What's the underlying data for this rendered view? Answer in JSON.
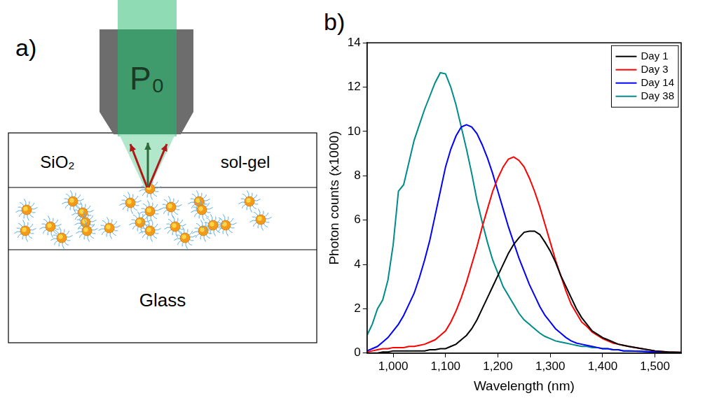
{
  "diagram": {
    "panel_label": "a)",
    "beam_label": "P₀",
    "layer_labels": [
      "SiO₂",
      "sol-gel"
    ],
    "substrate_label": "Glass"
  },
  "chart_data": {
    "panel_label": "b)",
    "type": "line",
    "x_label": "Wavelength (nm)",
    "y_label": "Photon counts (x1000)",
    "x": [
      950,
      960,
      970,
      980,
      990,
      1000,
      1010,
      1020,
      1030,
      1040,
      1050,
      1060,
      1070,
      1080,
      1090,
      1100,
      1110,
      1120,
      1130,
      1140,
      1150,
      1160,
      1170,
      1180,
      1190,
      1200,
      1210,
      1220,
      1230,
      1240,
      1250,
      1260,
      1270,
      1280,
      1290,
      1300,
      1310,
      1320,
      1330,
      1340,
      1350,
      1360,
      1370,
      1380,
      1390,
      1400,
      1410,
      1420,
      1430,
      1440,
      1450,
      1475,
      1500,
      1525,
      1550
    ],
    "series": [
      {
        "name": "Day 1",
        "color": "#000000",
        "values": [
          0,
          0,
          0,
          0.05,
          0.05,
          0.1,
          0.1,
          0.1,
          0.1,
          0.1,
          0.1,
          0.1,
          0.15,
          0.15,
          0.2,
          0.2,
          0.3,
          0.4,
          0.6,
          0.8,
          1.1,
          1.5,
          2.0,
          2.5,
          3.0,
          3.5,
          4.0,
          4.5,
          4.9,
          5.2,
          5.45,
          5.5,
          5.5,
          5.35,
          5.0,
          4.6,
          4.1,
          3.5,
          3.0,
          2.5,
          2.0,
          1.6,
          1.3,
          1.0,
          0.85,
          0.7,
          0.6,
          0.5,
          0.4,
          0.35,
          0.3,
          0.2,
          0.1,
          0.05,
          0.03
        ]
      },
      {
        "name": "Day 3",
        "color": "#ff0000",
        "values": [
          0.05,
          0.1,
          0.15,
          0.2,
          0.2,
          0.25,
          0.25,
          0.25,
          0.3,
          0.3,
          0.35,
          0.4,
          0.5,
          0.6,
          0.8,
          1.0,
          1.4,
          1.9,
          2.5,
          3.2,
          4.0,
          4.8,
          5.7,
          6.5,
          7.3,
          7.9,
          8.4,
          8.75,
          8.85,
          8.7,
          8.4,
          7.9,
          7.3,
          6.6,
          5.8,
          5.0,
          4.2,
          3.5,
          2.8,
          2.2,
          1.8,
          1.4,
          1.2,
          0.95,
          0.8,
          0.65,
          0.55,
          0.45,
          0.4,
          0.35,
          0.3,
          0.2,
          0.1,
          0.05,
          0.03
        ]
      },
      {
        "name": "Day 14",
        "color": "#0000ff",
        "values": [
          0.1,
          0.2,
          0.3,
          0.5,
          0.7,
          1.0,
          1.3,
          1.7,
          2.2,
          2.7,
          3.4,
          4.2,
          5.1,
          6.2,
          7.3,
          8.4,
          9.2,
          9.8,
          10.2,
          10.3,
          10.2,
          9.9,
          9.4,
          8.8,
          8.1,
          7.3,
          6.5,
          5.7,
          5.0,
          4.3,
          3.7,
          3.1,
          2.6,
          2.1,
          1.7,
          1.4,
          1.1,
          0.9,
          0.7,
          0.55,
          0.45,
          0.4,
          0.35,
          0.3,
          0.25,
          0.2,
          0.2,
          0.15,
          0.15,
          0.1,
          0.1,
          0.08,
          0.05,
          0.03,
          0.02
        ]
      },
      {
        "name": "Day 38",
        "color": "#008b8b",
        "values": [
          0.8,
          1.3,
          2.0,
          2.4,
          3.3,
          4.9,
          7.3,
          7.6,
          8.6,
          9.6,
          10.3,
          11.0,
          11.6,
          12.2,
          12.65,
          12.6,
          12.0,
          11.2,
          10.2,
          9.2,
          8.1,
          6.9,
          5.9,
          5.0,
          4.2,
          3.6,
          3.0,
          2.6,
          2.2,
          1.8,
          1.5,
          1.3,
          1.1,
          0.9,
          0.75,
          0.65,
          0.55,
          0.5,
          0.45,
          0.4,
          0.35,
          0.3,
          0.3,
          0.25,
          0.25,
          0.2,
          0.2,
          0.15,
          0.15,
          0.1,
          0.1,
          0.08,
          0.05,
          0.03,
          0.02
        ]
      }
    ],
    "xlim": [
      950,
      1550
    ],
    "xticks": [
      1000,
      1100,
      1200,
      1300,
      1400,
      1500
    ],
    "ylim": [
      0,
      14
    ],
    "yticks": [
      0,
      2,
      4,
      6,
      8,
      10,
      12,
      14
    ],
    "grid": false,
    "legend": "top right"
  }
}
